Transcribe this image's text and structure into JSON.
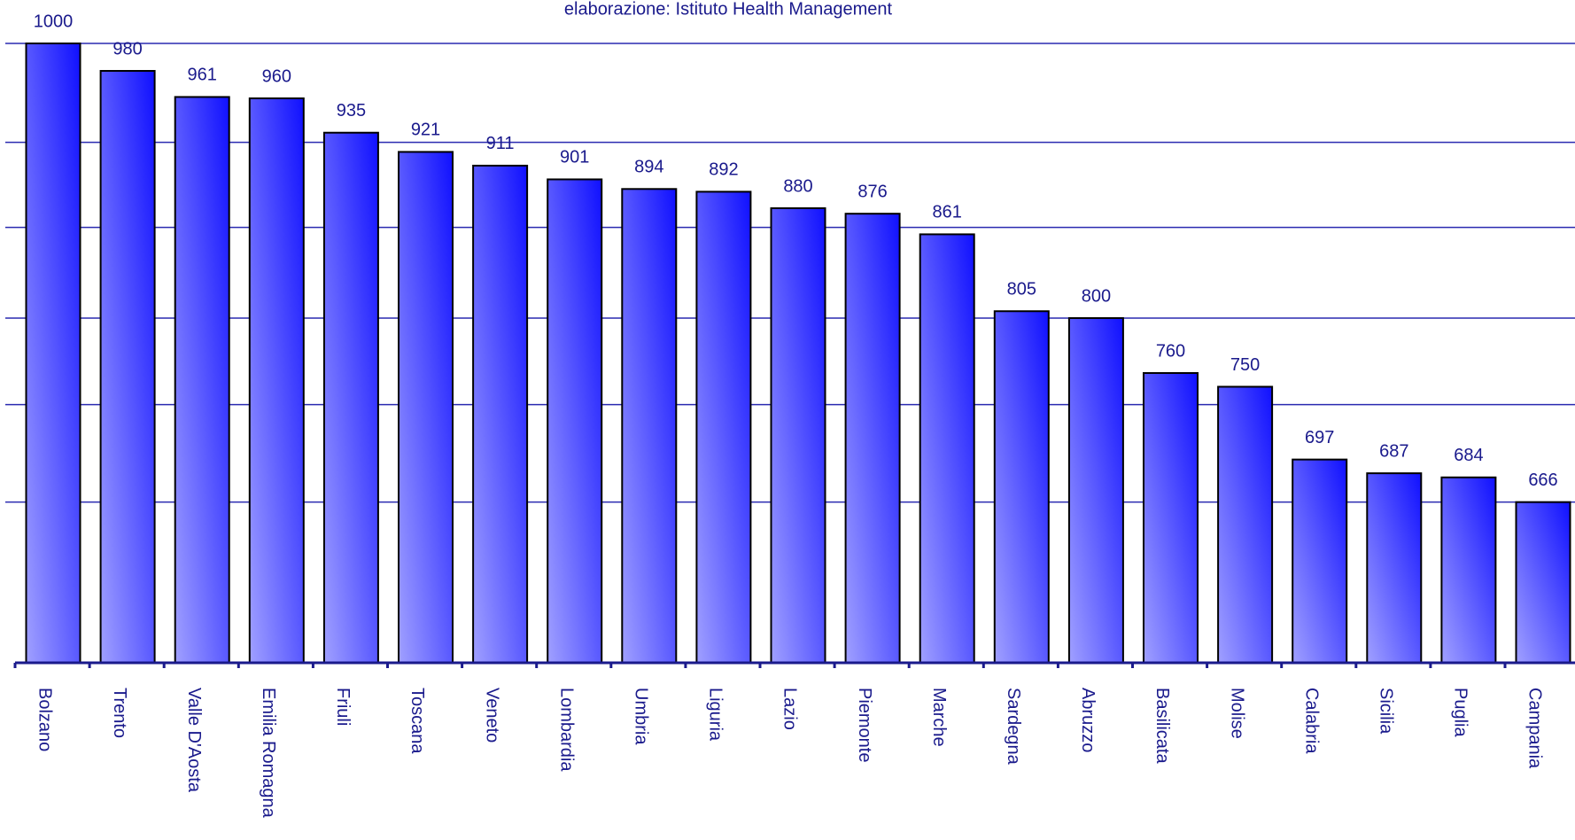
{
  "chart_data": {
    "type": "bar",
    "subtitle": "elaborazione: Istituto Health Management",
    "categories": [
      "Bolzano",
      "Trento",
      "Valle D'Aosta",
      "Emilia Romagna",
      "Friuli",
      "Toscana",
      "Veneto",
      "Lombardia",
      "Umbria",
      "Liguria",
      "Lazio",
      "Piemonte",
      "Marche",
      "Sardegna",
      "Abruzzo",
      "Basilicata",
      "Molise",
      "Calabria",
      "Sicilia",
      "Puglia",
      "Campania"
    ],
    "values": [
      1000,
      980,
      961,
      960,
      935,
      921,
      911,
      901,
      894,
      892,
      880,
      876,
      861,
      805,
      800,
      760,
      750,
      697,
      687,
      684,
      666
    ],
    "color": "#1515ff",
    "ylim": [
      549,
      1000
    ],
    "yticks": [
      666,
      737,
      800,
      866,
      928,
      1000
    ],
    "grid": true
  }
}
